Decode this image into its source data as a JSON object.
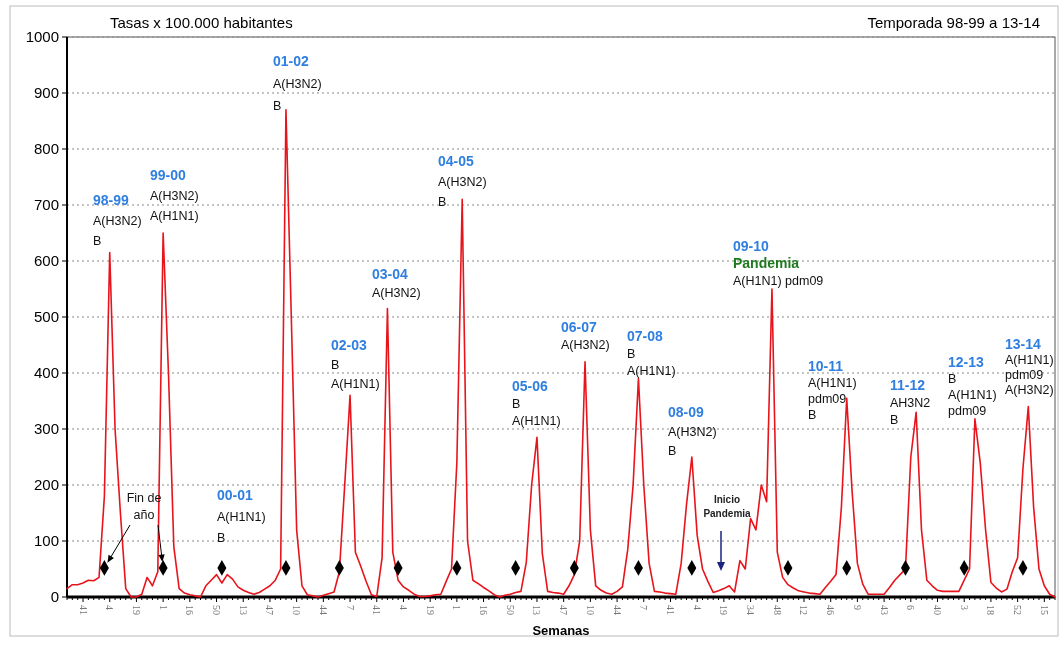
{
  "chart_data": {
    "type": "line",
    "title": "Tasas  x 100.000 habitantes",
    "subtitle": "Temporada 98-99 a 13-14",
    "xlabel": "Semanas",
    "categories": [
      null,
      null,
      null,
      "41",
      null,
      null,
      null,
      null,
      "4",
      null,
      null,
      null,
      null,
      "19",
      null,
      null,
      null,
      null,
      "1",
      null,
      null,
      null,
      null,
      "16",
      null,
      null,
      null,
      null,
      "50",
      null,
      null,
      null,
      null,
      "13",
      null,
      null,
      null,
      null,
      "47",
      null,
      null,
      null,
      null,
      "10",
      null,
      null,
      null,
      null,
      "44",
      null,
      null,
      null,
      null,
      "7",
      null,
      null,
      null,
      null,
      "41",
      null,
      null,
      null,
      null,
      "4",
      null,
      null,
      null,
      null,
      "19",
      null,
      null,
      null,
      null,
      "1",
      null,
      null,
      null,
      null,
      "16",
      null,
      null,
      null,
      null,
      "50",
      null,
      null,
      null,
      null,
      "13",
      null,
      null,
      null,
      null,
      "47",
      null,
      null,
      null,
      null,
      "10",
      null,
      null,
      null,
      null,
      "44",
      null,
      null,
      null,
      null,
      "7",
      null,
      null,
      null,
      null,
      "41",
      null,
      null,
      null,
      null,
      "4",
      null,
      null,
      null,
      null,
      "19",
      null,
      null,
      null,
      null,
      "34",
      null,
      null,
      null,
      null,
      "48",
      null,
      null,
      null,
      null,
      "12",
      null,
      null,
      null,
      null,
      "46",
      null,
      null,
      null,
      null,
      "9",
      null,
      null,
      null,
      null,
      "43",
      null,
      null,
      null,
      null,
      "6",
      null,
      null,
      null,
      null,
      "40",
      null,
      null,
      null,
      null,
      "3",
      null,
      null,
      null,
      null,
      "18",
      null,
      null,
      null,
      null,
      "52",
      null,
      null,
      null,
      null,
      "15",
      null,
      null
    ],
    "ylim": [
      0,
      1000
    ],
    "yticks": [
      0,
      100,
      200,
      300,
      400,
      500,
      600,
      700,
      800,
      900,
      1000
    ],
    "grid": "y",
    "series": [
      {
        "color": "#e8141c",
        "marker": "none",
        "line_style": "solid",
        "values": [
          15,
          22,
          22,
          25,
          30,
          29,
          35,
          180,
          615,
          300,
          150,
          15,
          0,
          0,
          5,
          35,
          20,
          45,
          650,
          400,
          90,
          15,
          7,
          4,
          2,
          0,
          20,
          30,
          40,
          25,
          40,
          32,
          18,
          12,
          8,
          5,
          8,
          14,
          20,
          30,
          50,
          870,
          500,
          120,
          20,
          4,
          2,
          0,
          3,
          6,
          9,
          45,
          200,
          360,
          80,
          55,
          28,
          4,
          1,
          70,
          515,
          80,
          30,
          18,
          12,
          5,
          1,
          1,
          2,
          4,
          5,
          28,
          50,
          240,
          710,
          100,
          30,
          24,
          17,
          11,
          4,
          0,
          3,
          5,
          8,
          10,
          62,
          200,
          285,
          78,
          10,
          8,
          7,
          5,
          20,
          40,
          100,
          420,
          120,
          20,
          12,
          7,
          5,
          10,
          18,
          85,
          200,
          390,
          200,
          60,
          10,
          9,
          7,
          6,
          5,
          60,
          165,
          250,
          110,
          50,
          28,
          8,
          11,
          15,
          20,
          9,
          65,
          50,
          140,
          120,
          200,
          170,
          550,
          80,
          35,
          22,
          16,
          11,
          9,
          7,
          6,
          5,
          17,
          28,
          40,
          160,
          355,
          190,
          60,
          23,
          5,
          5,
          5,
          5,
          17,
          30,
          40,
          50,
          250,
          330,
          120,
          30,
          20,
          12,
          10,
          10,
          10,
          10,
          30,
          50,
          318,
          240,
          120,
          26,
          16,
          9,
          14,
          45,
          70,
          230,
          340,
          160,
          50,
          20,
          5,
          0
        ]
      },
      {
        "type": "scatter",
        "color": "#000000",
        "marker": "diamond",
        "values": [
          null,
          null,
          null,
          null,
          null,
          null,
          null,
          52,
          null,
          null,
          null,
          null,
          null,
          null,
          null,
          null,
          null,
          null,
          52,
          null,
          null,
          null,
          null,
          null,
          null,
          null,
          null,
          null,
          null,
          52,
          null,
          null,
          null,
          null,
          null,
          null,
          null,
          null,
          null,
          null,
          null,
          52,
          null,
          null,
          null,
          null,
          null,
          null,
          null,
          null,
          null,
          52,
          null,
          null,
          null,
          null,
          null,
          null,
          null,
          null,
          null,
          null,
          52,
          null,
          null,
          null,
          null,
          null,
          null,
          null,
          null,
          null,
          null,
          52,
          null,
          null,
          null,
          null,
          null,
          null,
          null,
          null,
          null,
          null,
          52,
          null,
          null,
          null,
          null,
          null,
          null,
          null,
          null,
          null,
          null,
          52,
          null,
          null,
          null,
          null,
          null,
          null,
          null,
          null,
          null,
          null,
          null,
          52,
          null,
          null,
          null,
          null,
          null,
          null,
          null,
          null,
          null,
          52,
          null,
          null,
          null,
          null,
          null,
          null,
          null,
          null,
          null,
          null,
          null,
          null,
          null,
          null,
          null,
          null,
          null,
          52,
          null,
          null,
          null,
          null,
          null,
          null,
          null,
          null,
          null,
          null,
          52,
          null,
          null,
          null,
          null,
          null,
          null,
          null,
          null,
          null,
          null,
          52,
          null,
          null,
          null,
          null,
          null,
          null,
          null,
          null,
          null,
          null,
          52,
          null,
          null,
          null,
          null,
          null,
          null,
          null,
          null,
          null,
          null,
          52,
          null,
          null,
          null,
          null,
          null,
          null
        ]
      }
    ],
    "annotations": [
      "98-99\nA(H3N2)\nB",
      "99-00\nA(H3N2)\nA(H1N1)",
      "00-01\nA(H1N1)\nB",
      "01-02\nA(H3N2)\nB",
      "02-03\nB\nA(H1N1)",
      "03-04\nA(H3N2)",
      "04-05\nA(H3N2)\nB",
      "05-06\nB\nA(H1N1)",
      "06-07\nA(H3N2)",
      "07-08\nB\nA(H1N1)",
      "08-09\nA(H3N2)\nB",
      "09-10\nPandemia\nA(H1N1) pdm09",
      "10-11\nA(H1N1)\npdm09\nB",
      "11-12\nAH3N2\nB",
      "12-13\nB\nA(H1N1)\npdm09",
      "13-14\nA(H1N1)\npdm09\nA(H3N2)",
      "Fin de\naño",
      "Inicio\nPandemia"
    ]
  }
}
